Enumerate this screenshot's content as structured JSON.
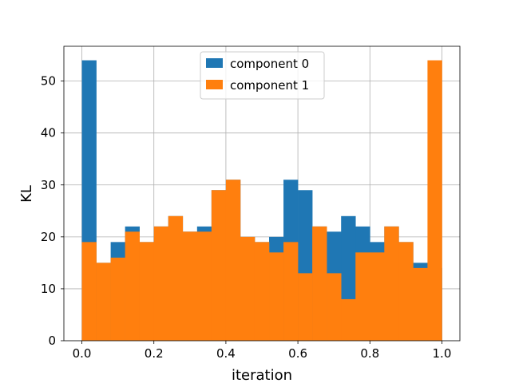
{
  "chart_data": {
    "type": "bar",
    "title": "",
    "xlabel": "iteration",
    "ylabel": "KL",
    "xlim": [
      -0.05,
      1.05
    ],
    "ylim": [
      0,
      56.7
    ],
    "grid": true,
    "legend_position": "top-center",
    "bins": {
      "start": 0.0,
      "end": 1.0,
      "count": 25
    },
    "x_ticks": [
      {
        "value": 0.0,
        "label": "0.0"
      },
      {
        "value": 0.2,
        "label": "0.2"
      },
      {
        "value": 0.4,
        "label": "0.4"
      },
      {
        "value": 0.6,
        "label": "0.6"
      },
      {
        "value": 0.8,
        "label": "0.8"
      },
      {
        "value": 1.0,
        "label": "1.0"
      }
    ],
    "y_ticks": [
      {
        "value": 0,
        "label": "0"
      },
      {
        "value": 10,
        "label": "10"
      },
      {
        "value": 20,
        "label": "20"
      },
      {
        "value": 30,
        "label": "30"
      },
      {
        "value": 40,
        "label": "40"
      },
      {
        "value": 50,
        "label": "50"
      }
    ],
    "series": [
      {
        "name": "component 0",
        "color": "#1f77b4",
        "values": [
          54,
          15,
          19,
          22,
          19,
          22,
          24,
          21,
          22,
          29,
          31,
          20,
          19,
          20,
          31,
          29,
          22,
          21,
          24,
          22,
          19,
          22,
          19,
          15,
          14
        ]
      },
      {
        "name": "component 1",
        "color": "#ff7f0e",
        "values": [
          19,
          15,
          16,
          21,
          19,
          22,
          24,
          21,
          21,
          29,
          31,
          20,
          19,
          17,
          19,
          13,
          22,
          13,
          8,
          17,
          17,
          22,
          19,
          14,
          54
        ]
      }
    ]
  }
}
